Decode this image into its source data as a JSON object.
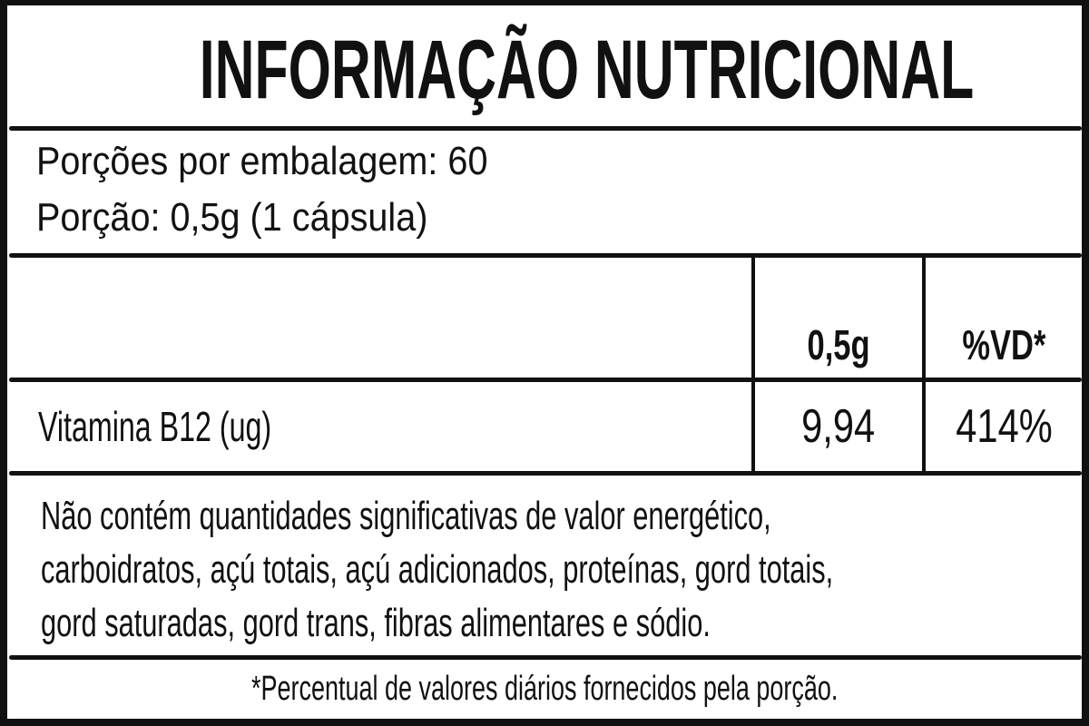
{
  "title": "INFORMAÇÃO NUTRICIONAL",
  "servings": {
    "per_package": "Porções por embalagem: 60",
    "portion": "Porção: 0,5g (1 cápsula)"
  },
  "table": {
    "headers": [
      "",
      "0,5g",
      "%VD*"
    ],
    "rows": [
      {
        "nutrient": "Vitamina B12 (ug)",
        "amount": "9,94",
        "dv": "414%"
      }
    ]
  },
  "note": {
    "lines": [
      "Não contém quantidades significativas de valor energético,",
      "carboidratos, açú totais, açú adicionados, proteínas, gord totais,",
      "gord saturadas, gord trans, fibras alimentares e sódio."
    ]
  },
  "footnote": "*Percentual de valores diários fornecidos pela porção.",
  "colors": {
    "ink": "#111111",
    "background": "#ffffff"
  }
}
